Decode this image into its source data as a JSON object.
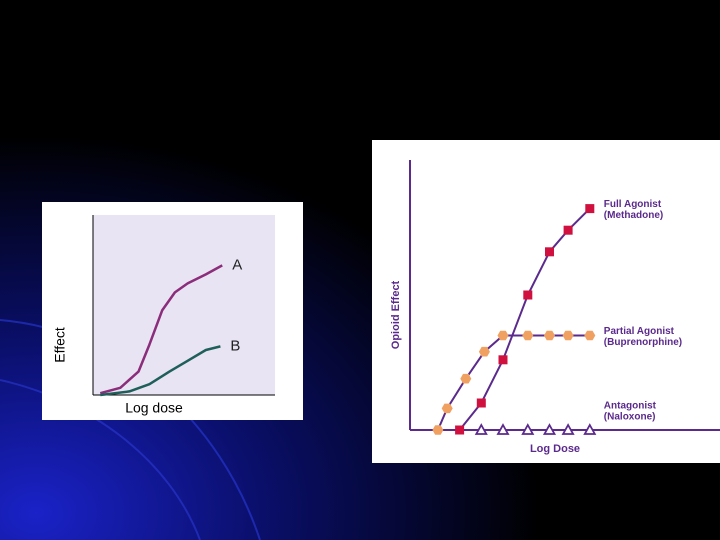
{
  "chart_data": [
    {
      "type": "line",
      "x_label": "Log dose",
      "y_label": "Effect",
      "xlim": [
        0,
        100
      ],
      "ylim": [
        0,
        100
      ],
      "series": [
        {
          "name": "A",
          "color": "#8b2d7a",
          "x": [
            4,
            15,
            25,
            31,
            38,
            45,
            52,
            62,
            71
          ],
          "values": [
            1,
            4,
            13,
            28,
            47,
            57,
            62,
            67,
            72
          ]
        },
        {
          "name": "B",
          "color": "#1f5f5a",
          "x": [
            4,
            20,
            31,
            42,
            52,
            62,
            70
          ],
          "values": [
            0,
            2,
            6,
            13,
            19,
            25,
            27
          ]
        }
      ]
    },
    {
      "type": "scatter-line",
      "x_label": "Log Dose",
      "y_label": "Opioid Effect",
      "xlim": [
        0,
        100
      ],
      "ylim": [
        0,
        100
      ],
      "line_color": "#5b2a8c",
      "series": [
        {
          "name": "Full Agonist",
          "detail": "(Methadone)",
          "color": "#d0103f",
          "marker": "square",
          "x": [
            16,
            23,
            30,
            38,
            45,
            51,
            58
          ],
          "values": [
            0,
            10,
            26,
            50,
            66,
            74,
            82
          ]
        },
        {
          "name": "Partial Agonist",
          "detail": "(Buprenorphine)",
          "color": "#f0a060",
          "marker": "hexagon",
          "x": [
            9,
            12,
            18,
            24,
            30,
            38,
            45,
            51,
            58
          ],
          "values": [
            0,
            8,
            19,
            29,
            35,
            35,
            35,
            35,
            35
          ]
        },
        {
          "name": "Antagonist",
          "detail": "(Naloxone)",
          "color": "#5b2a8c",
          "marker": "triangle",
          "x": [
            23,
            30,
            38,
            45,
            51,
            58
          ],
          "values": [
            0,
            0,
            0,
            0,
            0,
            0
          ]
        }
      ]
    }
  ]
}
